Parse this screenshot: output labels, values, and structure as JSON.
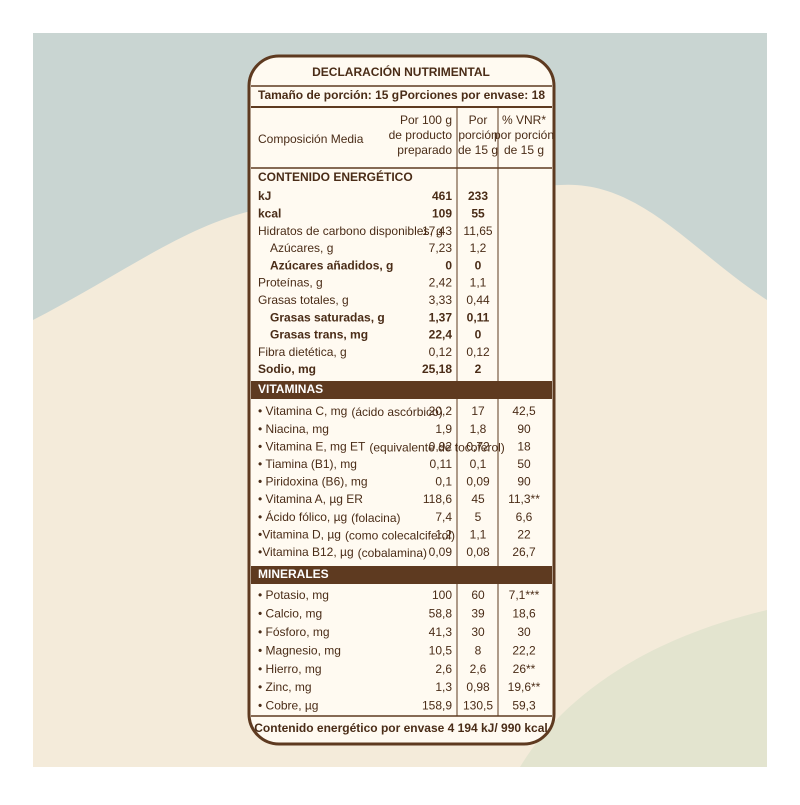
{
  "title": "DECLARACIÓN NUTRIMENTAL",
  "serving": {
    "size": "Tamaño de porción: 15 g",
    "per_container": "Porciones por envase: 18"
  },
  "columns": [
    [
      "Composición Media"
    ],
    [
      "Por 100 g",
      "de producto",
      "preparado"
    ],
    [
      "Por",
      "porción",
      "de 15 g"
    ],
    [
      "% VNR*",
      "por porción",
      "de 15 g"
    ]
  ],
  "sections": [
    {
      "title": "CONTENIDO ENERGÉTICO",
      "rows": [
        {
          "name": "kJ",
          "cells": [
            "461",
            "233"
          ]
        },
        {
          "name": "kcal",
          "cells": [
            "109",
            "55"
          ]
        },
        {
          "name": "Hidratos de carbono disponibles, g",
          "cells": [
            "17,43",
            "11,65"
          ]
        },
        {
          "name": "Azúcares, g",
          "cells": [
            "7,23",
            "1,2"
          ]
        },
        {
          "name": "Azúcares añadidos, g",
          "cells": [
            "0",
            "0"
          ]
        },
        {
          "name": "Proteínas, g",
          "cells": [
            "2,42",
            "1,1"
          ]
        },
        {
          "name": "Grasas totales, g",
          "cells": [
            "3,33",
            "0,44"
          ]
        },
        {
          "name": "Grasas saturadas, g",
          "cells": [
            "1,37",
            "0,11"
          ]
        },
        {
          "name": "Grasas trans, mg",
          "cells": [
            "22,4",
            "0"
          ]
        },
        {
          "name": "Fibra dietética, g",
          "cells": [
            "0,12",
            "0,12"
          ]
        },
        {
          "name": "Sodio, mg",
          "cells": [
            "25,18",
            "2"
          ]
        }
      ]
    },
    {
      "title": "VITAMINAS",
      "rows": [
        {
          "name": "• Vitamina C, mg",
          "note": "(ácido ascórbico)",
          "cells": [
            "20,2",
            "17",
            "42,5"
          ]
        },
        {
          "name": "• Niacina, mg",
          "cells": [
            "1,9",
            "1,8",
            "90"
          ]
        },
        {
          "name": "• Vitamina E, mg ET",
          "note": "(equivalente de tocoferol)",
          "cells": [
            "0,92",
            "0,72",
            "18"
          ]
        },
        {
          "name": "• Tiamina (B1), mg",
          "cells": [
            "0,11",
            "0,1",
            "50"
          ]
        },
        {
          "name": "• Piridoxina (B6), mg",
          "cells": [
            "0,1",
            "0,09",
            "90"
          ]
        },
        {
          "name": "• Vitamina A, µg ER",
          "cells": [
            "118,6",
            "45",
            "11,3**"
          ]
        },
        {
          "name": "• Ácido fólico, µg",
          "note": "(folacina)",
          "cells": [
            "7,4",
            "5",
            "6,6"
          ]
        },
        {
          "name": "•Vitamina D, µg",
          "note": "(como colecalciferol)",
          "cells": [
            "1,2",
            "1,1",
            "22"
          ]
        },
        {
          "name": "•Vitamina B12, µg",
          "note": "(cobalamina)",
          "cells": [
            "0,09",
            "0,08",
            "26,7"
          ]
        }
      ]
    },
    {
      "title": "MINERALES",
      "rows": [
        {
          "name": "• Potasio, mg",
          "cells": [
            "100",
            "60",
            "7,1***"
          ]
        },
        {
          "name": "• Calcio, mg",
          "cells": [
            "58,8",
            "39",
            "18,6"
          ]
        },
        {
          "name": "• Fósforo, mg",
          "cells": [
            "41,3",
            "30",
            "30"
          ]
        },
        {
          "name": "• Magnesio, mg",
          "cells": [
            "10,5",
            "8",
            "22,2"
          ]
        },
        {
          "name": "• Hierro, mg",
          "cells": [
            "2,6",
            "2,6",
            "26**"
          ]
        },
        {
          "name": "• Zinc, mg",
          "cells": [
            "1,3",
            "0,98",
            "19,6**"
          ]
        },
        {
          "name": "• Cobre, µg",
          "cells": [
            "158,9",
            "130,5",
            "59,3"
          ]
        }
      ]
    }
  ],
  "footer": "Contenido energético por envase 4 194 kJ/ 990 kcal"
}
